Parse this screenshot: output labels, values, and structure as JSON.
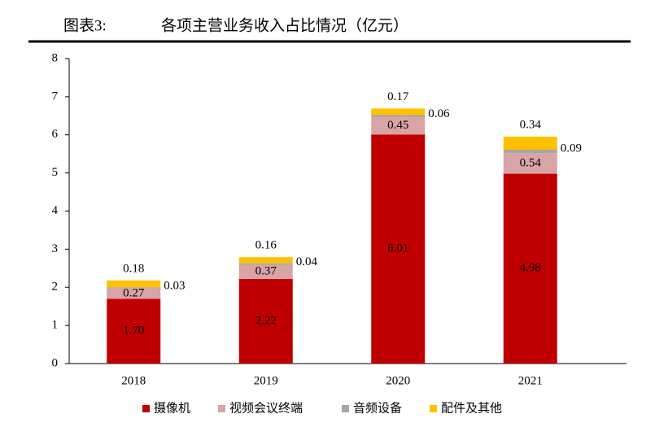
{
  "chart_data": {
    "type": "stacked_bar",
    "title_label": "图表3:",
    "title": "各项主营业务收入占比情况（亿元）",
    "categories": [
      "2018",
      "2019",
      "2020",
      "2021"
    ],
    "series": [
      {
        "name": "摄像机",
        "color": "#c00000",
        "values": [
          1.7,
          2.22,
          6.01,
          4.98
        ],
        "value_labels": [
          "1.70",
          "2.22",
          "6.01",
          "4.98"
        ]
      },
      {
        "name": "视频会议终端",
        "color": "#d8a4a6",
        "values": [
          0.27,
          0.37,
          0.45,
          0.54
        ],
        "value_labels": [
          "0.27",
          "0.37",
          "0.45",
          "0.54"
        ]
      },
      {
        "name": "音频设备",
        "color": "#a6a6a6",
        "values": [
          0.03,
          0.04,
          0.06,
          0.09
        ],
        "value_labels": [
          "0.03",
          "0.04",
          "0.06",
          "0.09"
        ]
      },
      {
        "name": "配件及其他",
        "color": "#ffc000",
        "values": [
          0.18,
          0.16,
          0.17,
          0.34
        ],
        "value_labels": [
          "0.18",
          "0.16",
          "0.17",
          "0.34"
        ]
      }
    ],
    "ylim": [
      0,
      8
    ],
    "yticks": [
      0,
      1,
      2,
      3,
      4,
      5,
      6,
      7,
      8
    ]
  }
}
